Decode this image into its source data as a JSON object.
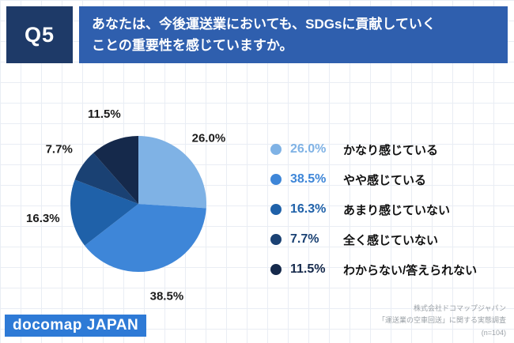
{
  "header": {
    "question_number": "Q5",
    "question_text": "あなたは、今後運送業においても、SDGsに貢献していく\nことの重要性を感じていますか。"
  },
  "chart_data": {
    "type": "pie",
    "title": "あなたは、今後運送業においても、SDGsに貢献していくことの重要性を感じていますか。",
    "labels": [
      "かなり感じている",
      "やや感じている",
      "あまり感じていない",
      "全く感じていない",
      "わからない/答えられない"
    ],
    "values": [
      26.0,
      38.5,
      16.3,
      7.7,
      11.5
    ],
    "value_labels": [
      "26.0%",
      "38.5%",
      "16.3%",
      "7.7%",
      "11.5%"
    ],
    "colors": [
      "#7fb2e5",
      "#3e86d8",
      "#1f61a9",
      "#1a4173",
      "#15294b"
    ],
    "start_angle_deg": 0,
    "direction": "clockwise",
    "legend_position": "right",
    "units": "percent"
  },
  "footer": {
    "logo_text": "docomap JAPAN",
    "credit_line1": "株式会社ドコマップジャパン",
    "credit_line2": "「運送業の空車回送」に関する実態調査",
    "credit_line3": "(n=104)"
  },
  "colors": {
    "question_badge_bg": "#1e3a68",
    "banner_bg": "#2f5fae",
    "logo_bg": "#2e7ad6",
    "slice_label_color": "#1a1a1a",
    "credit_color": "#9aa0a6"
  }
}
